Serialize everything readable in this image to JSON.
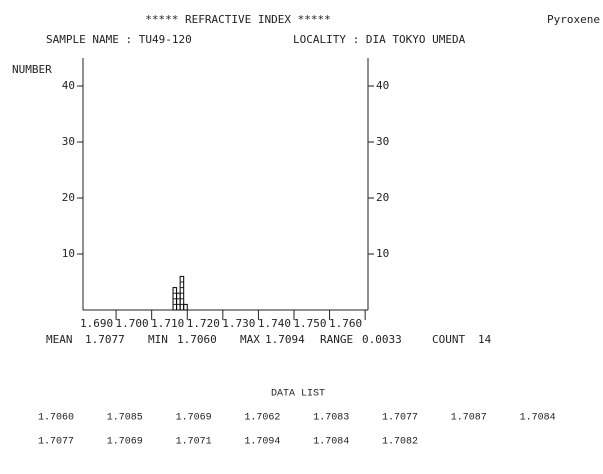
{
  "chart_data": {
    "type": "histogram",
    "title": "*****  REFRACTIVE  INDEX  *****",
    "mineral": "Pyroxene",
    "sample_name": "SAMPLE NAME : TU49-120",
    "locality": "LOCALITY : DIA TOKYO UMEDA",
    "y_label": "NUMBER",
    "bins": [
      1.706,
      1.707,
      1.708,
      1.709,
      1.71
    ],
    "values": [
      4,
      3,
      6,
      1
    ],
    "color": "#000000",
    "xlim": [
      1.6807,
      1.7608
    ],
    "xticks": [
      {
        "value": 1.69,
        "label": "1.690"
      },
      {
        "value": 1.7,
        "label": "1.700"
      },
      {
        "value": 1.71,
        "label": "1.710"
      },
      {
        "value": 1.72,
        "label": "1.720"
      },
      {
        "value": 1.73,
        "label": "1.730"
      },
      {
        "value": 1.74,
        "label": "1.740"
      },
      {
        "value": 1.75,
        "label": "1.750"
      },
      {
        "value": 1.76,
        "label": "1.760"
      }
    ],
    "ylim": [
      0,
      45
    ],
    "yticks": [
      10,
      20,
      30,
      40
    ]
  },
  "statistics": {
    "mean_label": "MEAN",
    "mean": "1.7077",
    "min_label": "MIN",
    "min": "1.7060",
    "max_label": "MAX",
    "max": "1.7094",
    "range_label": "RANGE",
    "range": "0.0033",
    "count_label": "COUNT",
    "count": "14"
  },
  "data_list": {
    "title": "DATA  LIST",
    "values": [
      "1.7060",
      "1.7085",
      "1.7069",
      "1.7062",
      "1.7083",
      "1.7077",
      "1.7087",
      "1.7084",
      "1.7077",
      "1.7069",
      "1.7071",
      "1.7094",
      "1.7084",
      "1.7082"
    ]
  }
}
